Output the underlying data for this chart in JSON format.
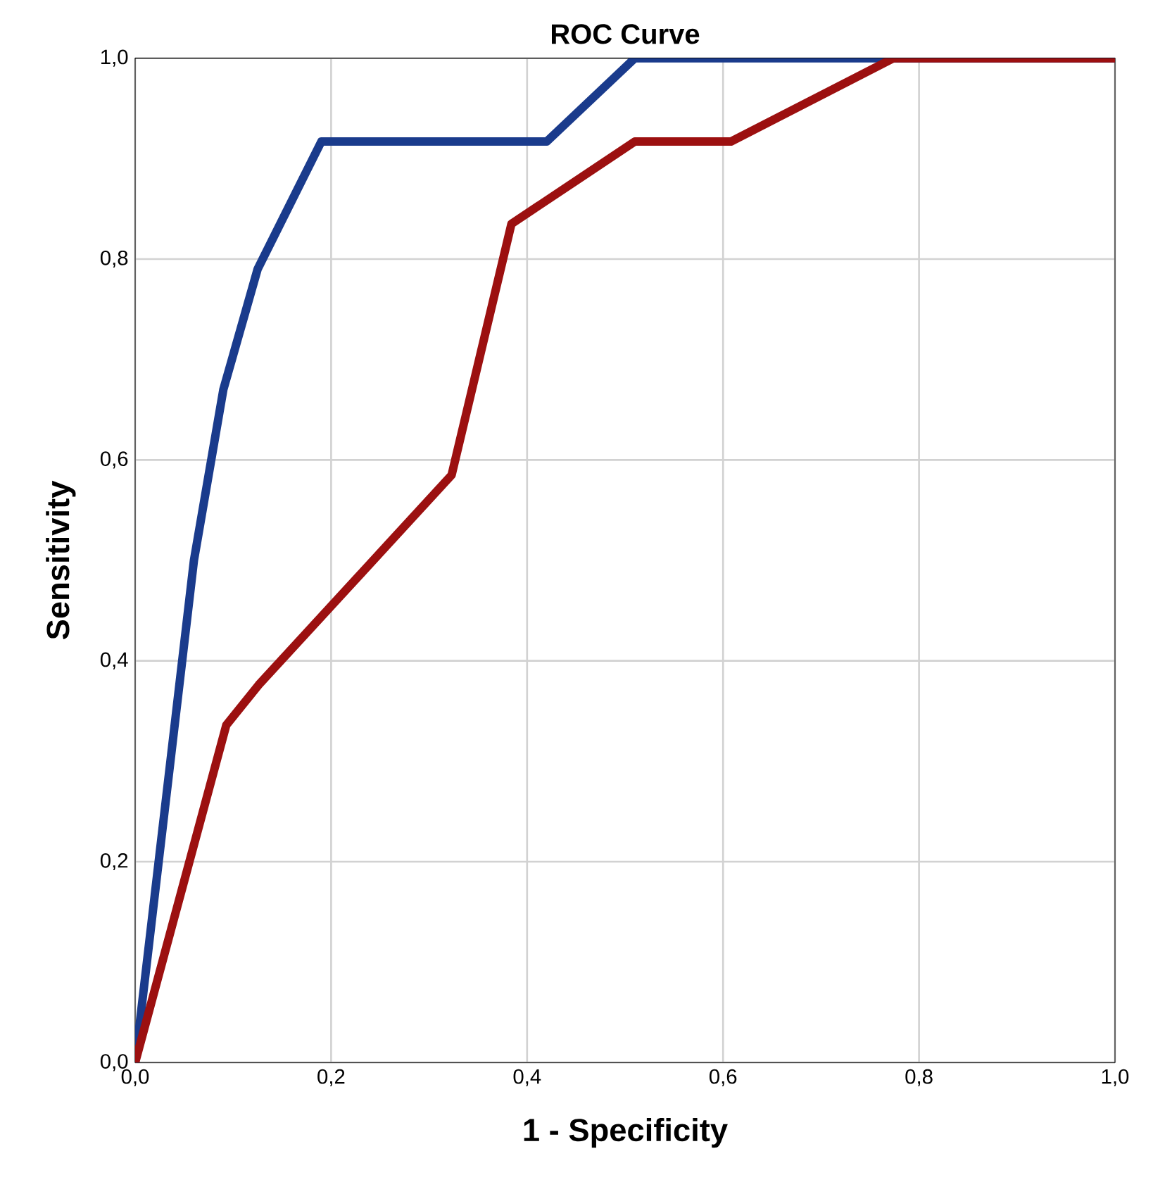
{
  "chart_data": {
    "type": "line",
    "title": "ROC Curve",
    "xlabel": "1 - Specificity",
    "ylabel": "Sensitivity",
    "xlim": [
      0,
      1
    ],
    "ylim": [
      0,
      1
    ],
    "xticks": [
      {
        "value": 0,
        "label": "0,0"
      },
      {
        "value": 0.2,
        "label": "0,2"
      },
      {
        "value": 0.4,
        "label": "0,4"
      },
      {
        "value": 0.6,
        "label": "0,6"
      },
      {
        "value": 0.8,
        "label": "0,8"
      },
      {
        "value": 1,
        "label": "1,0"
      }
    ],
    "yticks": [
      {
        "value": 0,
        "label": "0,0"
      },
      {
        "value": 0.2,
        "label": "0,2"
      },
      {
        "value": 0.4,
        "label": "0,4"
      },
      {
        "value": 0.6,
        "label": "0,6"
      },
      {
        "value": 0.8,
        "label": "0,8"
      },
      {
        "value": 1,
        "label": "1,0"
      }
    ],
    "grid": true,
    "marker": "none",
    "line_style": "solid",
    "series": [
      {
        "color": "#1a3b8c",
        "x": [
          0,
          0.06,
          0.09,
          0.125,
          0.19,
          0.42,
          0.51,
          1
        ],
        "values": [
          0,
          0.5,
          0.67,
          0.79,
          0.917,
          0.917,
          1,
          1
        ]
      },
      {
        "color": "#9c1010",
        "x": [
          0,
          0.093,
          0.126,
          0.323,
          0.384,
          0.51,
          0.608,
          0.774,
          1
        ],
        "values": [
          0,
          0.336,
          0.376,
          0.585,
          0.835,
          0.917,
          0.917,
          1,
          1
        ]
      }
    ]
  }
}
